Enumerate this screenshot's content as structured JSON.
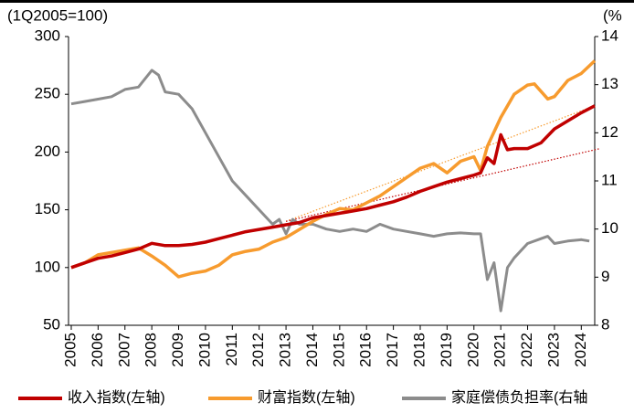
{
  "chart_data": {
    "type": "line",
    "left_axis_label": "(1Q2005=100)",
    "right_axis_label": "(%",
    "xlim": [
      2005,
      2024.5
    ],
    "xticks": [
      2005,
      2006,
      2007,
      2008,
      2009,
      2010,
      2011,
      2012,
      2013,
      2014,
      2015,
      2016,
      2017,
      2018,
      2019,
      2020,
      2021,
      2022,
      2023,
      2024
    ],
    "ylim": [
      50,
      300
    ],
    "yticks": [
      50,
      100,
      150,
      200,
      250,
      300
    ],
    "y2lim": [
      8,
      14
    ],
    "y2ticks": [
      8,
      9,
      10,
      11,
      12,
      13,
      14
    ],
    "series": [
      {
        "name": "收入指数(左轴)",
        "color": "#c00000",
        "x": [
          2005,
          2005.5,
          2006,
          2006.5,
          2007,
          2007.5,
          2008,
          2008.5,
          2009,
          2009.5,
          2010,
          2010.5,
          2011,
          2011.5,
          2012,
          2012.5,
          2013,
          2013.5,
          2014,
          2014.5,
          2015,
          2015.5,
          2016,
          2016.5,
          2017,
          2017.5,
          2018,
          2018.5,
          2019,
          2019.5,
          2020,
          2020.25,
          2020.5,
          2020.75,
          2021,
          2021.25,
          2021.5,
          2022,
          2022.5,
          2023,
          2023.5,
          2024,
          2024.5
        ],
        "values": [
          100,
          104,
          108,
          110,
          113,
          116,
          121,
          119,
          119,
          120,
          122,
          125,
          128,
          131,
          133,
          135,
          137,
          139,
          143,
          145,
          147,
          149,
          151,
          154,
          157,
          161,
          166,
          170,
          174,
          177,
          180,
          182,
          195,
          190,
          215,
          202,
          203,
          203,
          208,
          220,
          227,
          234,
          240
        ]
      },
      {
        "name": "财富指数(左轴)",
        "color": "#f79b2e",
        "x": [
          2005,
          2005.5,
          2006,
          2006.5,
          2007,
          2007.5,
          2008,
          2008.5,
          2009,
          2009.5,
          2010,
          2010.5,
          2011,
          2011.5,
          2012,
          2012.5,
          2013,
          2013.5,
          2014,
          2014.5,
          2015,
          2015.5,
          2016,
          2016.5,
          2017,
          2017.5,
          2018,
          2018.5,
          2019,
          2019.5,
          2020,
          2020.25,
          2020.5,
          2021,
          2021.5,
          2022,
          2022.25,
          2022.75,
          2023,
          2023.5,
          2024,
          2024.5
        ],
        "values": [
          100,
          104,
          111,
          113,
          115,
          117,
          110,
          102,
          92,
          95,
          97,
          102,
          111,
          114,
          116,
          122,
          126,
          133,
          140,
          146,
          151,
          150,
          156,
          162,
          170,
          178,
          186,
          190,
          182,
          192,
          196,
          184,
          205,
          230,
          250,
          258,
          259,
          246,
          248,
          262,
          268,
          279
        ]
      },
      {
        "name": "家庭偿债负担率(右轴",
        "color": "#8c8c8c",
        "axis": "y2",
        "x": [
          2005,
          2005.5,
          2006,
          2006.5,
          2007,
          2007.5,
          2008,
          2008.25,
          2008.5,
          2009,
          2009.5,
          2010,
          2010.5,
          2011,
          2011.5,
          2012,
          2012.5,
          2012.75,
          2013,
          2013.25,
          2013.5,
          2014,
          2014.5,
          2015,
          2015.5,
          2016,
          2016.5,
          2017,
          2017.5,
          2018,
          2018.5,
          2019,
          2019.5,
          2020,
          2020.25,
          2020.5,
          2020.75,
          2021,
          2021.25,
          2021.5,
          2022,
          2022.5,
          2022.75,
          2023,
          2023.5,
          2024,
          2024.3
        ],
        "values": [
          12.6,
          12.65,
          12.7,
          12.75,
          12.9,
          12.95,
          13.3,
          13.2,
          12.85,
          12.8,
          12.5,
          12.0,
          11.5,
          11.0,
          10.7,
          10.4,
          10.1,
          10.2,
          9.9,
          10.2,
          10.1,
          10.1,
          10.0,
          9.95,
          10.0,
          9.95,
          10.1,
          10.0,
          9.95,
          9.9,
          9.85,
          9.9,
          9.92,
          9.9,
          9.9,
          8.95,
          9.3,
          8.3,
          9.2,
          9.4,
          9.7,
          9.8,
          9.85,
          9.7,
          9.75,
          9.78,
          9.75
        ]
      }
    ],
    "trendlines": [
      {
        "color": "#f79b2e",
        "x": [
          2013,
          2024.5
        ],
        "values": [
          140,
          240
        ]
      },
      {
        "color": "#c00000",
        "x": [
          2013,
          2024.7
        ],
        "values": [
          140,
          203
        ]
      }
    ]
  }
}
